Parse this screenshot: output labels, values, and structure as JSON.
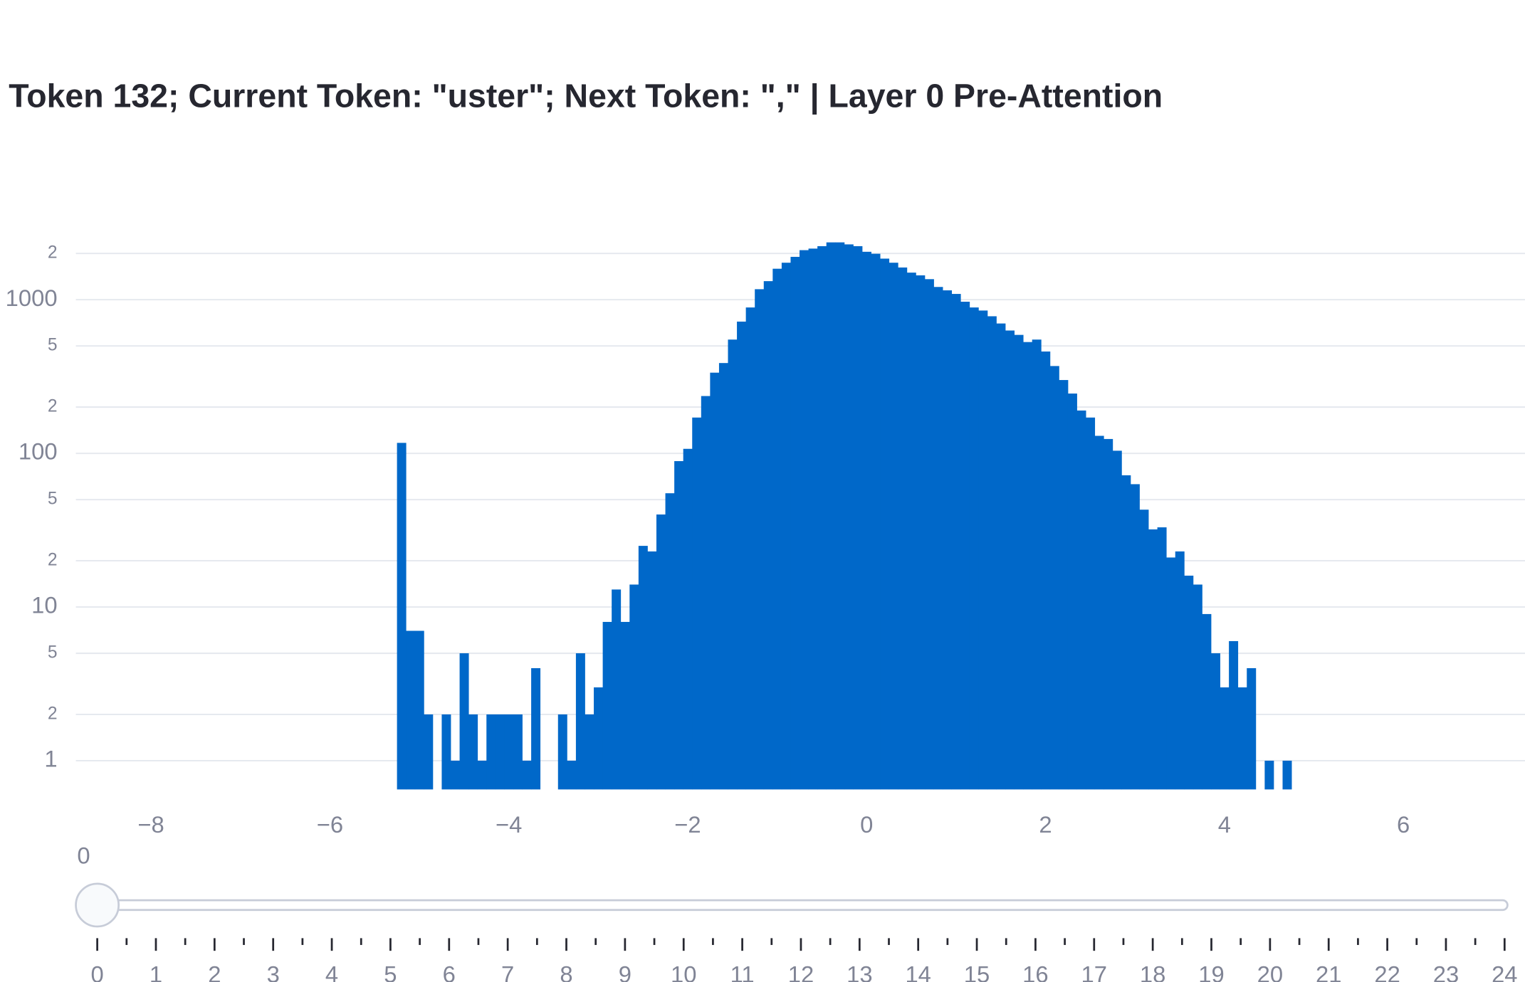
{
  "chart_data": {
    "type": "histogram",
    "title": "Token 132; Current Token: \"uster\"; Next Token: \",\" | Layer 0 Pre-Attention",
    "bins": [
      -5.25,
      -5.15,
      -5.05,
      -4.95,
      -4.85,
      -4.75,
      -4.65,
      -4.55,
      -4.45,
      -4.35,
      -4.25,
      -4.15,
      -4.05,
      -3.95,
      -3.85,
      -3.75,
      -3.65,
      -3.55,
      -3.45,
      -3.35,
      -3.25,
      -3.15,
      -3.05,
      -2.95,
      -2.85,
      -2.75,
      -2.65,
      -2.55,
      -2.45,
      -2.35,
      -2.25,
      -2.15,
      -2.05,
      -1.95,
      -1.85,
      -1.75,
      -1.65,
      -1.55,
      -1.45,
      -1.35,
      -1.25,
      -1.15,
      -1.05,
      -0.95,
      -0.85,
      -0.75,
      -0.65,
      -0.55,
      -0.45,
      -0.35,
      -0.25,
      -0.15,
      -0.05,
      0.05,
      0.15,
      0.25,
      0.35,
      0.45,
      0.55,
      0.65,
      0.75,
      0.85,
      0.95,
      1.05,
      1.15,
      1.25,
      1.35,
      1.45,
      1.55,
      1.65,
      1.75,
      1.85,
      1.95,
      2.05,
      2.15,
      2.25,
      2.35,
      2.45,
      2.55,
      2.65,
      2.75,
      2.85,
      2.95,
      3.05,
      3.15,
      3.25,
      3.35,
      3.45,
      3.55,
      3.65,
      3.75,
      3.85,
      3.95,
      4.05,
      4.15,
      4.25,
      4.35,
      4.45,
      4.55,
      4.65,
      4.75
    ],
    "values": [
      117,
      7,
      7,
      2,
      0,
      2,
      1,
      5,
      2,
      1,
      2,
      2,
      2,
      2,
      1,
      4,
      0,
      0,
      2,
      1,
      5,
      2,
      3,
      8,
      13,
      8,
      14,
      25,
      23,
      40,
      55,
      89,
      107,
      171,
      236,
      335,
      387,
      550,
      720,
      890,
      1170,
      1320,
      1590,
      1740,
      1900,
      2100,
      2150,
      2230,
      2360,
      2360,
      2290,
      2230,
      2050,
      1990,
      1850,
      1740,
      1620,
      1500,
      1440,
      1360,
      1210,
      1150,
      1090,
      970,
      890,
      850,
      780,
      700,
      630,
      590,
      530,
      550,
      460,
      370,
      300,
      245,
      190,
      171,
      130,
      124,
      104,
      72,
      63,
      43,
      32,
      33,
      21,
      23,
      16,
      14,
      9,
      5,
      3,
      6,
      3,
      4,
      0,
      1,
      0,
      1
    ],
    "color": "#0068c9",
    "xlim": [
      -8.84,
      7.36
    ],
    "xticks": [
      {
        "value": -8,
        "label": "−8"
      },
      {
        "value": -6,
        "label": "−6"
      },
      {
        "value": -4,
        "label": "−4"
      },
      {
        "value": -2,
        "label": "−2"
      },
      0,
      2,
      4,
      6
    ],
    "ylim": [
      0.65,
      2700
    ],
    "log_y": true,
    "yticks": [
      1,
      2,
      5,
      10,
      {
        "value": 20,
        "label": "2"
      },
      {
        "value": 50,
        "label": "5"
      },
      100,
      {
        "value": 200,
        "label": "2"
      },
      {
        "value": 500,
        "label": "5"
      },
      1000,
      {
        "value": 2000,
        "label": "2"
      }
    ],
    "grid": true
  },
  "slider": {
    "current_label": "0",
    "steps": [
      "0",
      "1",
      "2",
      "3",
      "4",
      "5",
      "6",
      "7",
      "8",
      "9",
      "10",
      "11",
      "12",
      "13",
      "14",
      "15",
      "16",
      "17",
      "18",
      "19",
      "20",
      "21",
      "22",
      "23",
      "24"
    ]
  }
}
